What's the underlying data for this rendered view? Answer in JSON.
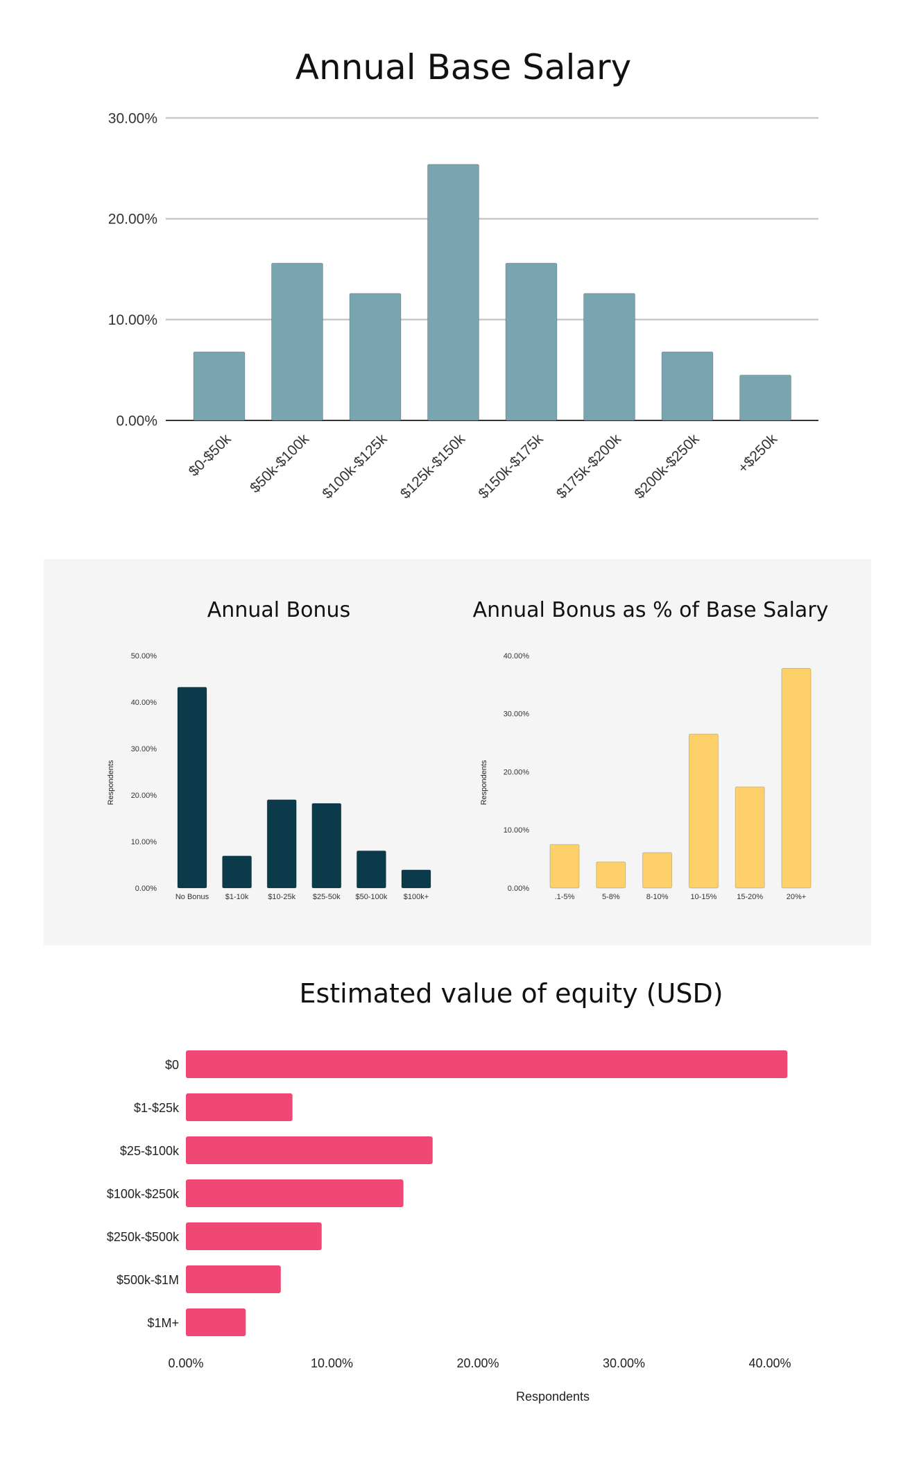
{
  "chart_data": [
    {
      "type": "bar",
      "title": "Annual Base Salary",
      "categories": [
        "$0-$50k",
        "$50k-$100k",
        "$100k-$125k",
        "$125k-$150k",
        "$150k-$175k",
        "$175k-$200k",
        "$200k-$250k",
        "+$250k"
      ],
      "values": [
        6.8,
        15.6,
        12.6,
        25.4,
        15.6,
        12.6,
        6.8,
        4.5
      ],
      "ylim": [
        0,
        30
      ],
      "yticks": [
        "0.00%",
        "10.00%",
        "20.00%",
        "30.00%"
      ],
      "xlabel": "",
      "ylabel": "",
      "color": "#78a5b0",
      "grid": true
    },
    {
      "type": "bar",
      "title": "Annual Bonus",
      "categories": [
        "No Bonus",
        "$1-10k",
        "$10-25k",
        "$25-50k",
        "$50-100k",
        "$100k+"
      ],
      "values": [
        43.2,
        6.9,
        19.0,
        18.2,
        8.0,
        3.9
      ],
      "ylim": [
        0,
        50
      ],
      "yticks": [
        "0.00%",
        "10.00%",
        "20.00%",
        "30.00%",
        "40.00%",
        "50.00%"
      ],
      "xlabel": "",
      "ylabel": "Respondents",
      "color": "#0b3a4b",
      "grid": false
    },
    {
      "type": "bar",
      "title": "Annual Bonus as % of Base Salary",
      "categories": [
        ".1-5%",
        "5-8%",
        "8-10%",
        "10-15%",
        "15-20%",
        "20%+"
      ],
      "values": [
        7.5,
        4.5,
        6.1,
        26.5,
        17.4,
        37.8
      ],
      "ylim": [
        0,
        40
      ],
      "yticks": [
        "0.00%",
        "10.00%",
        "20.00%",
        "30.00%",
        "40.00%"
      ],
      "xlabel": "",
      "ylabel": "Respondents",
      "color": "#fdd06a",
      "grid": false
    },
    {
      "type": "bar",
      "orientation": "horizontal",
      "title": "Estimated value of equity (USD)",
      "categories": [
        "$0",
        "$1-$25k",
        "$25-$100k",
        "$100k-$250k",
        "$250k-$500k",
        "$500k-$1M",
        "$1M+"
      ],
      "values": [
        41.2,
        7.3,
        16.9,
        14.9,
        9.3,
        6.5,
        4.1
      ],
      "xlim": [
        0,
        42
      ],
      "xticks": [
        "0.00%",
        "10.00%",
        "20.00%",
        "30.00%",
        "40.00%"
      ],
      "xlabel": "Respondents",
      "ylabel": "",
      "color": "#ef4875",
      "grid": false
    }
  ]
}
